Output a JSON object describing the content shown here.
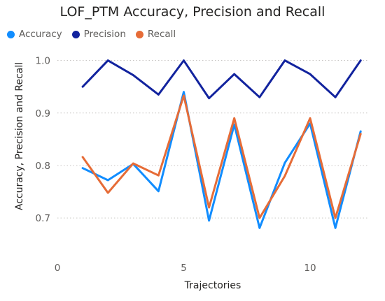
{
  "chart_data": {
    "type": "line",
    "title": "LOF_PTM Accuracy, Precision and Recall",
    "xlabel": "Trajectories",
    "ylabel": "Accuracy, Precision and Recall",
    "xlim": [
      0,
      12.3
    ],
    "ylim": [
      0.655,
      1.03
    ],
    "x_ticks": [
      0,
      5,
      10
    ],
    "y_ticks": [
      0.7,
      0.8,
      0.9,
      1.0
    ],
    "x_tick_labels": [
      "0",
      "5",
      "10"
    ],
    "y_tick_labels": [
      "0.7",
      "0.8",
      "0.9",
      "1.0"
    ],
    "grid": "horizontal-dotted",
    "legend_position": "top-left",
    "x": [
      1,
      2,
      3,
      4,
      5,
      6,
      7,
      8,
      9,
      10,
      11,
      12
    ],
    "series": [
      {
        "name": "Accuracy",
        "color": "#118dff",
        "values": [
          0.795,
          0.772,
          0.803,
          0.751,
          0.94,
          0.695,
          0.878,
          0.681,
          0.805,
          0.88,
          0.681,
          0.865
        ]
      },
      {
        "name": "Precision",
        "color": "#12239e",
        "values": [
          0.95,
          1.0,
          0.972,
          0.935,
          1.0,
          0.928,
          0.974,
          0.93,
          1.0,
          0.974,
          0.93,
          1.0
        ]
      },
      {
        "name": "Recall",
        "color": "#e66c37",
        "values": [
          0.816,
          0.748,
          0.804,
          0.781,
          0.933,
          0.72,
          0.89,
          0.7,
          0.78,
          0.89,
          0.7,
          0.86
        ]
      }
    ]
  }
}
